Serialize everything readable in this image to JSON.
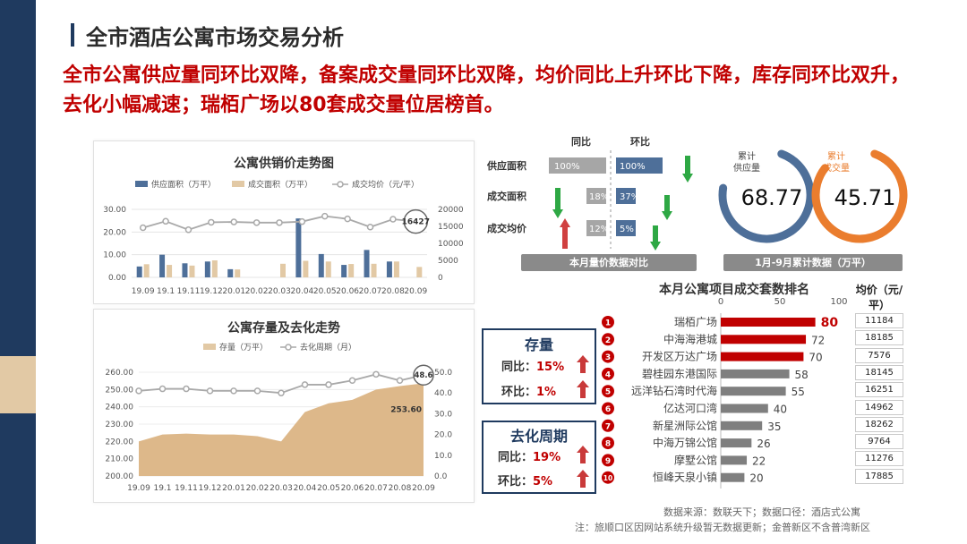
{
  "header": {
    "title": "全市酒店公寓市场交易分析",
    "headline": "全市公寓供应量同环比双降，备案成交量同环比双降，均价同比上升环比下降，库存同环比双升，去化小幅减速；瑞栢广场以80套成交量位居榜首。"
  },
  "colors": {
    "navy": "#1f3a5f",
    "red": "#c00000",
    "tan": "#e2c9a5",
    "blue_bar": "#4e6f99",
    "orange": "#ea7d2e",
    "grey": "#8a8a8a"
  },
  "chart_data": [
    {
      "type": "bar",
      "title": "公寓供销价走势图",
      "categories": [
        "19.09",
        "19.1",
        "19.11",
        "19.12",
        "20.01",
        "20.02",
        "20.03",
        "20.04",
        "20.05",
        "20.06",
        "20.07",
        "20.08",
        "20.09"
      ],
      "series": [
        {
          "name": "供应面积（万平）",
          "axis": "left",
          "values": [
            4.8,
            10,
            6.2,
            7,
            3.6,
            0,
            0,
            26,
            10.3,
            5.5,
            12.1,
            7,
            0
          ]
        },
        {
          "name": "成交面积（万平）",
          "axis": "left",
          "values": [
            5.8,
            5.5,
            5.2,
            7.5,
            3.5,
            0,
            6,
            7.3,
            7,
            5.9,
            6,
            7,
            4.6
          ]
        },
        {
          "name": "成交均价（元/平）",
          "axis": "right",
          "type": "line",
          "values": [
            14600,
            16500,
            14000,
            16200,
            16300,
            16100,
            16100,
            16400,
            18000,
            17200,
            14800,
            17100,
            16427
          ]
        }
      ],
      "ylim": [
        0,
        30
      ],
      "yticks": [
        "0.00",
        "10.00",
        "20.00",
        "30.00"
      ],
      "y2lim": [
        0,
        20000
      ],
      "y2ticks": [
        "0",
        "5000",
        "10000",
        "15000",
        "20000"
      ],
      "annotations": [
        "16427"
      ],
      "legend": "top"
    },
    {
      "type": "area",
      "title": "公寓存量及去化走势",
      "categories": [
        "19.09",
        "19.1",
        "19.11",
        "19.12",
        "20.01",
        "20.02",
        "20.03",
        "20.04",
        "20.05",
        "20.06",
        "20.07",
        "20.08",
        "20.09"
      ],
      "series": [
        {
          "name": "存量（万平）",
          "axis": "left",
          "values": [
            220,
            224,
            224.5,
            224,
            224,
            223,
            220,
            237,
            242,
            244,
            250,
            252,
            253.6
          ]
        },
        {
          "name": "去化周期（月）",
          "axis": "right",
          "type": "line",
          "values": [
            41,
            42,
            42,
            41,
            41,
            41,
            40,
            44,
            44,
            46,
            49,
            46,
            48.6
          ]
        }
      ],
      "ylim": [
        200,
        260
      ],
      "yticks": [
        "200.00",
        "210.00",
        "220.00",
        "230.00",
        "240.00",
        "250.00",
        "260.00"
      ],
      "y2lim": [
        0,
        50
      ],
      "y2ticks": [
        "0.0",
        "10.0",
        "20.0",
        "30.0",
        "40.0",
        "50.0"
      ],
      "annotations": [
        "48.6",
        "253.60"
      ],
      "legend": "top"
    },
    {
      "type": "bar",
      "title": "本月量价数据对比",
      "column_headers": [
        "同比",
        "环比"
      ],
      "rows": [
        {
          "label": "供应面积",
          "yoy": "100%",
          "yoy_value": 100,
          "yoy_dir": "down",
          "mom": "100%",
          "mom_value": 100,
          "mom_dir": "down"
        },
        {
          "label": "成交面积",
          "yoy": "18%",
          "yoy_value": 18,
          "yoy_dir": "down",
          "mom": "37%",
          "mom_value": 37,
          "mom_dir": "down"
        },
        {
          "label": "成交均价",
          "yoy": "12%",
          "yoy_value": 12,
          "yoy_dir": "up",
          "mom": "5%",
          "mom_value": 5,
          "mom_dir": "down"
        }
      ]
    },
    {
      "type": "bar",
      "title": "本月公寓项目成交套数排名",
      "xlim": [
        0,
        100
      ],
      "xticks": [
        "0",
        "50",
        "100"
      ],
      "price_header": "均价（元/平）",
      "items": [
        {
          "rank": "1",
          "name": "瑞栢广场",
          "value": 80,
          "price": "11184"
        },
        {
          "rank": "2",
          "name": "中海海港城",
          "value": 72,
          "price": "18185"
        },
        {
          "rank": "3",
          "name": "开发区万达广场",
          "value": 70,
          "price": "7576"
        },
        {
          "rank": "4",
          "name": "碧桂园东港国际",
          "value": 58,
          "price": "18145"
        },
        {
          "rank": "5",
          "name": "远洋钻石湾时代海",
          "value": 55,
          "price": "16251"
        },
        {
          "rank": "6",
          "name": "亿达河口湾",
          "value": 40,
          "price": "14962"
        },
        {
          "rank": "7",
          "name": "新星洲际公馆",
          "value": 35,
          "price": "18262"
        },
        {
          "rank": "8",
          "name": "中海万锦公馆",
          "value": 26,
          "price": "9764"
        },
        {
          "rank": "9",
          "name": "摩墅公馆",
          "value": 22,
          "price": "11276"
        },
        {
          "rank": "10",
          "name": "恒峰天泉小镇",
          "value": 20,
          "price": "17885"
        }
      ]
    },
    {
      "type": "pie",
      "title": "1月-9月累计数据（万平）",
      "items": [
        {
          "label": "累计供应量",
          "value": 68.77,
          "display": "68.77",
          "share": 0.72
        },
        {
          "label": "累计成交量",
          "value": 45.71,
          "display": "45.71",
          "share": 0.8
        }
      ]
    }
  ],
  "kpi": {
    "stock": {
      "title": "存量",
      "yoy_label": "同比：",
      "yoy": "15%",
      "mom_label": "环比：",
      "mom": "1%"
    },
    "cycle": {
      "title": "去化周期",
      "yoy_label": "同比：",
      "yoy": "19%",
      "mom_label": "环比：",
      "mom": "5%"
    }
  },
  "footer": {
    "source": "数据来源：数联天下；数据口径：酒店式公寓",
    "note": "注：旅顺口区因网站系统升级暂无数据更新；金普新区不含普湾新区"
  }
}
